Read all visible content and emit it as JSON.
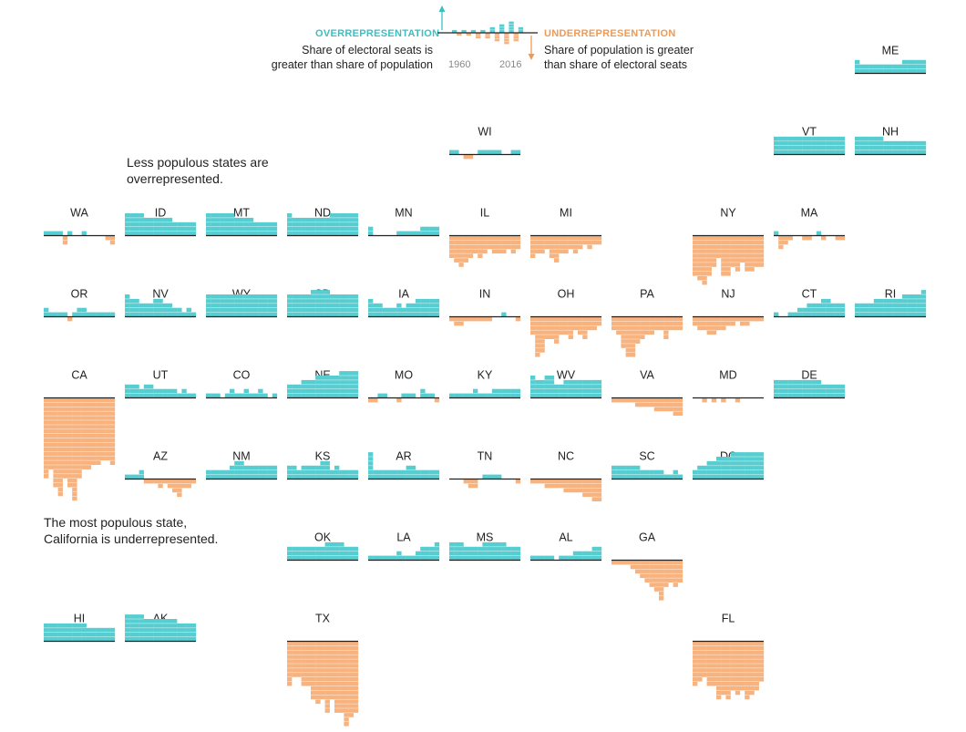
{
  "colors": {
    "over": "#56cdd0",
    "under": "#f7b27e",
    "axis": "#222222",
    "tick": "#ffffff"
  },
  "legend": {
    "over_title": "OVERREPRESENTATION",
    "over_desc_1": "Share of electoral seats is",
    "over_desc_2": "greater than share of population",
    "under_title": "UNDERREPRESENTATION",
    "under_desc_1": "Share of population is greater",
    "under_desc_2": "than share of electoral seats",
    "year_start": "1960",
    "year_end": "2016"
  },
  "annotations": {
    "less_populous_1": "Less populous states are",
    "less_populous_2": "overrepresented.",
    "ca_note_1": "The most populous state,",
    "ca_note_2": "California is underrepresented."
  },
  "chart_data": {
    "type": "bar",
    "x": [
      "1960",
      "1964",
      "1968",
      "1972",
      "1976",
      "1980",
      "1984",
      "1988",
      "1992",
      "1996",
      "2000",
      "2004",
      "2008",
      "2012",
      "2016"
    ],
    "unit": "stacked blocks (positive = overrepresented, negative = underrepresented)",
    "legend_sample": [
      1,
      -1,
      1,
      -1,
      1,
      -2,
      1,
      -2,
      2,
      -3,
      3,
      -4,
      4,
      -3,
      2
    ],
    "states": [
      {
        "abbr": "ME",
        "values": [
          3,
          2,
          2,
          2,
          2,
          2,
          2,
          2,
          2,
          2,
          3,
          3,
          3,
          3,
          3
        ]
      },
      {
        "abbr": "WI",
        "values": [
          1,
          1,
          0,
          -1,
          -1,
          0,
          1,
          1,
          1,
          1,
          1,
          0,
          0,
          1,
          1
        ]
      },
      {
        "abbr": "VT",
        "values": [
          4,
          4,
          4,
          4,
          4,
          4,
          4,
          4,
          4,
          4,
          4,
          4,
          4,
          4,
          4
        ]
      },
      {
        "abbr": "NH",
        "values": [
          4,
          4,
          4,
          4,
          4,
          4,
          3,
          3,
          3,
          3,
          3,
          3,
          3,
          3,
          3
        ]
      },
      {
        "abbr": "WA",
        "values": [
          1,
          1,
          1,
          1,
          -2,
          1,
          0,
          0,
          1,
          0,
          0,
          0,
          0,
          -1,
          -2
        ]
      },
      {
        "abbr": "ID",
        "values": [
          5,
          5,
          5,
          5,
          4,
          4,
          4,
          4,
          4,
          4,
          3,
          3,
          3,
          3,
          3
        ]
      },
      {
        "abbr": "MT",
        "values": [
          5,
          5,
          5,
          5,
          5,
          5,
          4,
          4,
          4,
          4,
          3,
          3,
          3,
          3,
          3
        ]
      },
      {
        "abbr": "ND",
        "values": [
          5,
          4,
          4,
          4,
          4,
          4,
          4,
          4,
          4,
          5,
          5,
          5,
          5,
          5,
          5
        ]
      },
      {
        "abbr": "MN",
        "values": [
          2,
          0,
          0,
          0,
          0,
          0,
          1,
          1,
          1,
          1,
          1,
          2,
          2,
          2,
          2
        ]
      },
      {
        "abbr": "IL",
        "values": [
          -5,
          -6,
          -7,
          -6,
          -5,
          -4,
          -5,
          -4,
          -3,
          -4,
          -4,
          -4,
          -3,
          -4,
          -3
        ]
      },
      {
        "abbr": "MI",
        "values": [
          -5,
          -4,
          -4,
          -3,
          -5,
          -6,
          -4,
          -4,
          -3,
          -4,
          -3,
          -2,
          -3,
          -2,
          -2
        ]
      },
      {
        "abbr": "NY",
        "values": [
          -9,
          -10,
          -11,
          -9,
          -7,
          -5,
          -9,
          -9,
          -7,
          -8,
          -6,
          -8,
          -8,
          -7,
          -7
        ]
      },
      {
        "abbr": "MA",
        "values": [
          1,
          -3,
          -2,
          -1,
          0,
          0,
          -1,
          -1,
          0,
          1,
          -1,
          0,
          0,
          -1,
          -1
        ]
      },
      {
        "abbr": "OR",
        "values": [
          2,
          1,
          1,
          1,
          1,
          -1,
          1,
          2,
          2,
          1,
          1,
          1,
          1,
          1,
          1
        ]
      },
      {
        "abbr": "NV",
        "values": [
          5,
          4,
          4,
          3,
          3,
          3,
          4,
          4,
          3,
          3,
          2,
          2,
          1,
          2,
          1
        ]
      },
      {
        "abbr": "WY",
        "values": [
          5,
          5,
          5,
          5,
          5,
          5,
          5,
          5,
          5,
          5,
          5,
          5,
          5,
          5,
          5
        ]
      },
      {
        "abbr": "SD",
        "values": [
          5,
          5,
          5,
          5,
          5,
          6,
          6,
          6,
          6,
          5,
          5,
          5,
          5,
          5,
          5
        ]
      },
      {
        "abbr": "IA",
        "values": [
          4,
          3,
          3,
          2,
          2,
          2,
          3,
          2,
          3,
          3,
          4,
          4,
          4,
          4,
          4
        ]
      },
      {
        "abbr": "IN",
        "values": [
          -1,
          -2,
          -2,
          -1,
          -1,
          -1,
          -1,
          -1,
          -1,
          0,
          0,
          1,
          0,
          0,
          -1
        ]
      },
      {
        "abbr": "OH",
        "values": [
          -4,
          -9,
          -8,
          -5,
          -5,
          -6,
          -4,
          -4,
          -5,
          -3,
          -4,
          -5,
          -3,
          -3,
          -2
        ]
      },
      {
        "abbr": "PA",
        "values": [
          -3,
          -4,
          -7,
          -9,
          -9,
          -6,
          -5,
          -4,
          -4,
          -3,
          -3,
          -5,
          -3,
          -3,
          -3
        ]
      },
      {
        "abbr": "NJ",
        "values": [
          -2,
          -3,
          -3,
          -4,
          -4,
          -3,
          -3,
          -2,
          -2,
          -1,
          -2,
          -2,
          -1,
          -1,
          -1
        ]
      },
      {
        "abbr": "CT",
        "values": [
          1,
          0,
          0,
          1,
          1,
          2,
          2,
          3,
          3,
          3,
          4,
          4,
          3,
          3,
          3
        ]
      },
      {
        "abbr": "RI",
        "values": [
          3,
          3,
          3,
          3,
          4,
          4,
          4,
          4,
          4,
          4,
          5,
          5,
          5,
          5,
          6
        ]
      },
      {
        "abbr": "CA",
        "values": [
          -18,
          -16,
          -20,
          -22,
          -18,
          -20,
          -23,
          -18,
          -16,
          -16,
          -15,
          -15,
          -14,
          -14,
          -15
        ]
      },
      {
        "abbr": "UT",
        "values": [
          3,
          3,
          3,
          2,
          3,
          3,
          2,
          2,
          2,
          2,
          2,
          1,
          2,
          1,
          1
        ]
      },
      {
        "abbr": "CO",
        "values": [
          1,
          1,
          1,
          0,
          1,
          2,
          1,
          1,
          2,
          1,
          1,
          2,
          1,
          0,
          1
        ]
      },
      {
        "abbr": "NE",
        "values": [
          3,
          3,
          3,
          4,
          4,
          4,
          5,
          5,
          5,
          5,
          5,
          6,
          6,
          6,
          6
        ]
      },
      {
        "abbr": "MO",
        "values": [
          -1,
          -1,
          1,
          1,
          0,
          0,
          -1,
          1,
          1,
          1,
          0,
          2,
          1,
          1,
          -1
        ]
      },
      {
        "abbr": "KY",
        "values": [
          1,
          1,
          1,
          1,
          1,
          2,
          1,
          1,
          1,
          2,
          2,
          2,
          2,
          2,
          2
        ]
      },
      {
        "abbr": "WV",
        "values": [
          5,
          4,
          4,
          5,
          5,
          3,
          3,
          4,
          4,
          4,
          4,
          4,
          4,
          4,
          4
        ]
      },
      {
        "abbr": "VA",
        "values": [
          -1,
          -1,
          -1,
          -1,
          -1,
          -2,
          -2,
          -2,
          -2,
          -3,
          -3,
          -3,
          -3,
          -4,
          -4
        ]
      },
      {
        "abbr": "MD",
        "values": [
          0,
          0,
          -1,
          0,
          -1,
          0,
          -1,
          0,
          0,
          -1,
          0,
          0,
          0,
          0,
          0
        ]
      },
      {
        "abbr": "DE",
        "values": [
          4,
          4,
          4,
          4,
          4,
          4,
          4,
          4,
          4,
          4,
          3,
          3,
          3,
          3,
          3
        ]
      },
      {
        "abbr": "AZ",
        "values": [
          1,
          1,
          1,
          2,
          -1,
          -1,
          -1,
          -2,
          -1,
          -2,
          -3,
          -4,
          -2,
          -2,
          -1
        ]
      },
      {
        "abbr": "NM",
        "values": [
          2,
          2,
          2,
          2,
          2,
          3,
          4,
          4,
          3,
          3,
          3,
          3,
          3,
          3,
          3
        ]
      },
      {
        "abbr": "KS",
        "values": [
          3,
          3,
          2,
          3,
          3,
          3,
          3,
          4,
          4,
          2,
          3,
          2,
          2,
          2,
          2
        ]
      },
      {
        "abbr": "AR",
        "values": [
          6,
          2,
          2,
          2,
          2,
          2,
          2,
          2,
          3,
          3,
          2,
          2,
          2,
          2,
          2
        ]
      },
      {
        "abbr": "TN",
        "values": [
          0,
          0,
          0,
          -1,
          -2,
          -2,
          0,
          1,
          1,
          1,
          1,
          0,
          0,
          0,
          -1
        ]
      },
      {
        "abbr": "NC",
        "values": [
          -1,
          -1,
          -1,
          -2,
          -2,
          -2,
          -2,
          -3,
          -3,
          -3,
          -3,
          -4,
          -4,
          -5,
          -5
        ]
      },
      {
        "abbr": "SC",
        "values": [
          3,
          3,
          3,
          3,
          3,
          3,
          2,
          2,
          2,
          2,
          2,
          1,
          1,
          2,
          1
        ]
      },
      {
        "abbr": "DC",
        "values": [
          2,
          3,
          3,
          4,
          4,
          5,
          5,
          5,
          6,
          6,
          6,
          6,
          6,
          6,
          6
        ]
      },
      {
        "abbr": "OK",
        "values": [
          3,
          3,
          3,
          3,
          3,
          3,
          3,
          3,
          4,
          4,
          4,
          4,
          3,
          3,
          3
        ]
      },
      {
        "abbr": "LA",
        "values": [
          1,
          1,
          1,
          1,
          1,
          1,
          2,
          1,
          1,
          1,
          2,
          3,
          3,
          3,
          4
        ]
      },
      {
        "abbr": "MS",
        "values": [
          4,
          4,
          4,
          3,
          3,
          3,
          3,
          4,
          4,
          4,
          4,
          4,
          3,
          3,
          3
        ]
      },
      {
        "abbr": "AL",
        "values": [
          1,
          1,
          1,
          1,
          1,
          0,
          1,
          1,
          1,
          2,
          2,
          2,
          2,
          3,
          3
        ]
      },
      {
        "abbr": "GA",
        "values": [
          -1,
          -1,
          -1,
          -1,
          -2,
          -3,
          -4,
          -5,
          -6,
          -7,
          -9,
          -6,
          -5,
          -6,
          -5
        ]
      },
      {
        "abbr": "HI",
        "values": [
          4,
          4,
          4,
          4,
          4,
          4,
          4,
          4,
          4,
          3,
          3,
          3,
          3,
          3,
          3
        ]
      },
      {
        "abbr": "AK",
        "values": [
          6,
          6,
          6,
          6,
          5,
          5,
          5,
          5,
          5,
          5,
          5,
          4,
          4,
          4,
          4
        ]
      },
      {
        "abbr": "TX",
        "values": [
          -10,
          -8,
          -8,
          -10,
          -10,
          -13,
          -14,
          -13,
          -16,
          -13,
          -16,
          -16,
          -19,
          -17,
          -16
        ]
      },
      {
        "abbr": "FL",
        "values": [
          -10,
          -9,
          -8,
          -10,
          -10,
          -13,
          -12,
          -13,
          -11,
          -12,
          -11,
          -13,
          -12,
          -11,
          -9
        ]
      }
    ]
  }
}
